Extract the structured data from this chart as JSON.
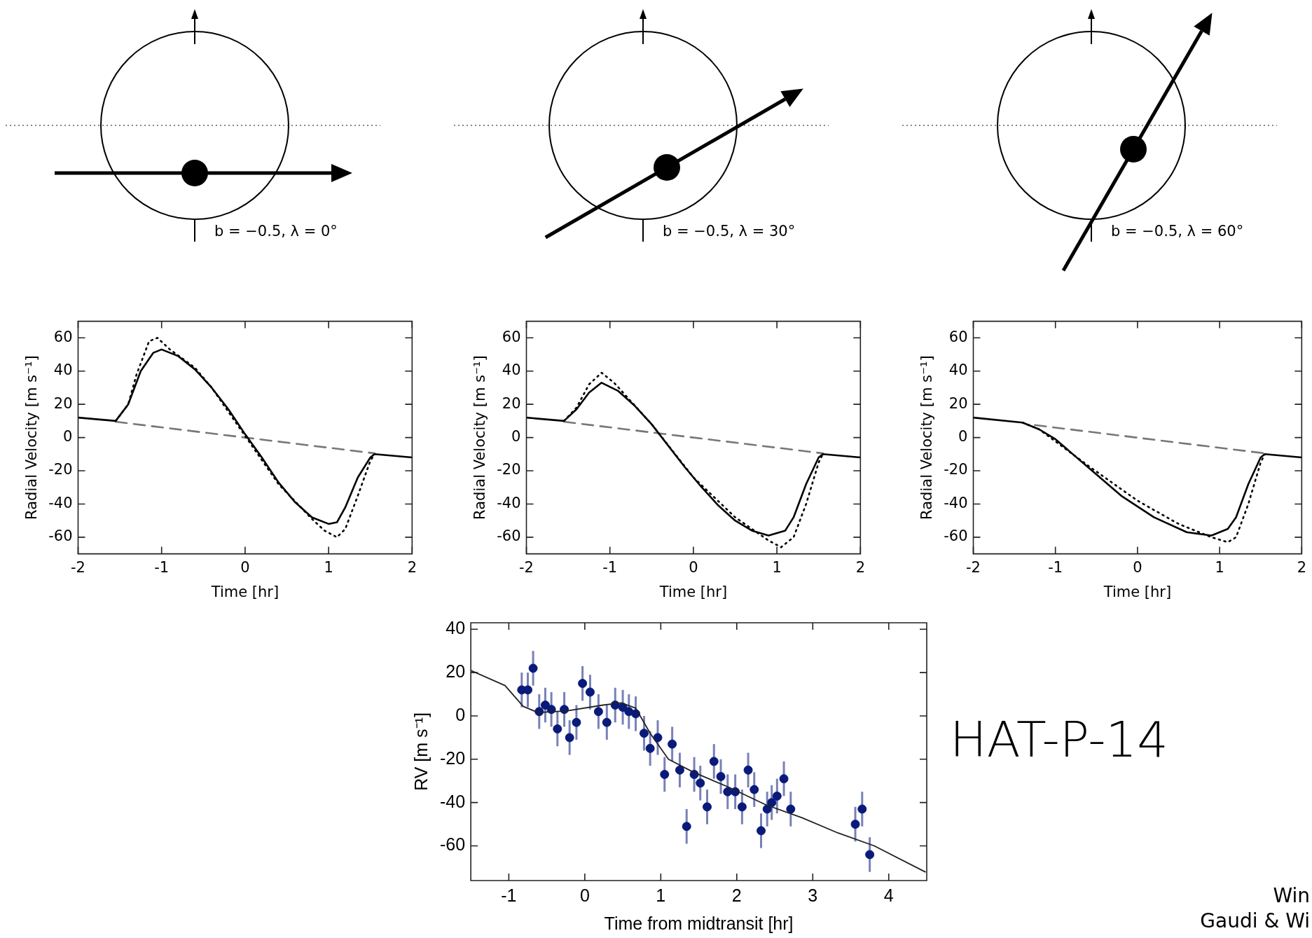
{
  "chart_data": [
    {
      "type": "line",
      "xlabel": "Time [hr]",
      "ylabel": "Radial Velocity [m s⁻¹]",
      "xlim": [
        -2,
        2
      ],
      "ylim": [
        -70,
        70
      ],
      "xticks": [
        -2,
        -1,
        0,
        1,
        2
      ],
      "yticks": [
        -60,
        -40,
        -20,
        0,
        20,
        40,
        60
      ],
      "annotations": [
        "b = −0.5, λ = 0°"
      ],
      "series": [
        {
          "color": "#000000",
          "line_style": "solid",
          "x": [
            -2,
            -1.55,
            -1.4,
            -1.25,
            -1.1,
            -1,
            -0.8,
            -0.6,
            -0.4,
            -0.2,
            0,
            0.2,
            0.4,
            0.6,
            0.8,
            1,
            1.1,
            1.2,
            1.35,
            1.5,
            1.55,
            2
          ],
          "values": [
            12,
            10,
            20,
            40,
            51,
            53,
            49,
            41,
            30,
            17,
            2,
            -12,
            -27,
            -39,
            -48,
            -52,
            -51,
            -42,
            -24,
            -12,
            -10,
            -12
          ]
        },
        {
          "color": "#000000",
          "line_style": "dotted",
          "x": [
            -1.55,
            -1.4,
            -1.3,
            -1.15,
            -1.05,
            -0.9,
            -0.6,
            -0.4,
            0,
            0.4,
            0.8,
            0.95,
            1.1,
            1.2,
            1.35,
            1.5,
            1.55
          ],
          "values": [
            10,
            20,
            38,
            58,
            60,
            53,
            42,
            30,
            1,
            -28,
            -49,
            -56,
            -60,
            -55,
            -35,
            -14,
            -10
          ]
        },
        {
          "color": "#777777",
          "line_style": "dashed",
          "x": [
            -1.55,
            1.55
          ],
          "values": [
            9.5,
            -9.5
          ]
        }
      ]
    },
    {
      "type": "line",
      "xlabel": "Time [hr]",
      "ylabel": "Radial Velocity [m s⁻¹]",
      "xlim": [
        -2,
        2
      ],
      "ylim": [
        -70,
        70
      ],
      "xticks": [
        -2,
        -1,
        0,
        1,
        2
      ],
      "yticks": [
        -60,
        -40,
        -20,
        0,
        20,
        40,
        60
      ],
      "annotations": [
        "b = −0.5, λ = 30°"
      ],
      "series": [
        {
          "color": "#000000",
          "line_style": "solid",
          "x": [
            -2,
            -1.55,
            -1.4,
            -1.25,
            -1.1,
            -0.9,
            -0.7,
            -0.5,
            -0.3,
            -0.1,
            0.1,
            0.3,
            0.5,
            0.7,
            0.9,
            1.1,
            1.2,
            1.35,
            1.5,
            1.55,
            2
          ],
          "values": [
            12,
            10,
            17,
            27,
            33,
            28,
            19,
            8,
            -5,
            -18,
            -30,
            -41,
            -50,
            -56,
            -59,
            -56,
            -48,
            -28,
            -12,
            -10,
            -12
          ]
        },
        {
          "color": "#000000",
          "line_style": "dotted",
          "x": [
            -1.55,
            -1.4,
            -1.25,
            -1.1,
            -0.95,
            -0.5,
            0,
            0.5,
            0.9,
            1.05,
            1.2,
            1.35,
            1.5,
            1.55
          ],
          "values": [
            10,
            18,
            32,
            39,
            33,
            8,
            -24,
            -48,
            -62,
            -66,
            -60,
            -40,
            -15,
            -10
          ]
        },
        {
          "color": "#777777",
          "line_style": "dashed",
          "x": [
            -1.55,
            1.55
          ],
          "values": [
            9.5,
            -9.5
          ]
        }
      ]
    },
    {
      "type": "line",
      "xlabel": "Time [hr]",
      "ylabel": "Radial Velocity [m s⁻¹]",
      "xlim": [
        -2,
        2
      ],
      "ylim": [
        -70,
        70
      ],
      "xticks": [
        -2,
        -1,
        0,
        1,
        2
      ],
      "yticks": [
        -60,
        -40,
        -20,
        0,
        20,
        40,
        60
      ],
      "annotations": [
        "b = −0.5, λ = 60°"
      ],
      "series": [
        {
          "color": "#000000",
          "line_style": "solid",
          "x": [
            -2,
            -1.4,
            -1.2,
            -1,
            -0.6,
            -0.2,
            0.2,
            0.6,
            0.9,
            1.1,
            1.2,
            1.35,
            1.5,
            1.55,
            2
          ],
          "values": [
            12,
            9,
            5,
            -1,
            -18,
            -35,
            -48,
            -57,
            -59,
            -55,
            -48,
            -28,
            -12,
            -10,
            -12
          ]
        },
        {
          "color": "#000000",
          "line_style": "dotted",
          "x": [
            -1.4,
            -1.2,
            -0.6,
            0,
            0.5,
            0.9,
            1.1,
            1.2,
            1.35,
            1.5,
            1.55
          ],
          "values": [
            9,
            5,
            -17,
            -38,
            -52,
            -60,
            -63,
            -60,
            -40,
            -15,
            -10
          ]
        },
        {
          "color": "#777777",
          "line_style": "dashed",
          "x": [
            -1.25,
            1.55
          ],
          "values": [
            7.5,
            -9.5
          ]
        }
      ]
    },
    {
      "type": "scatter",
      "xlabel": "Time from midtransit [hr]",
      "ylabel": "RV [m s⁻¹]",
      "xlim": [
        -1.5,
        4.5
      ],
      "ylim": [
        -76,
        43
      ],
      "xticks": [
        -1,
        0,
        1,
        2,
        3,
        4
      ],
      "yticks": [
        -60,
        -40,
        -20,
        0,
        20,
        40
      ],
      "annotations": [
        "HAT-P-14",
        "Win",
        "Gaudi & Wi"
      ],
      "series": [
        {
          "type": "line",
          "color": "#222222",
          "line_style": "solid",
          "x": [
            -1.5,
            -1.05,
            -0.81,
            -0.62,
            -0.24,
            0.24,
            0.48,
            0.67,
            0.86,
            1.1,
            1.43,
            1.9,
            2.38,
            2.86,
            3.33,
            3.81,
            4.48
          ],
          "values": [
            21,
            14,
            4.4,
            1.6,
            2.3,
            5,
            6,
            3.6,
            -8,
            -20,
            -26,
            -33,
            -41,
            -47,
            -54,
            -60,
            -72
          ]
        },
        {
          "color": "#0a1a7a",
          "marker": "circle",
          "x": [
            -0.83,
            -0.75,
            -0.68,
            -0.6,
            -0.52,
            -0.44,
            -0.36,
            -0.27,
            -0.2,
            -0.11,
            -0.03,
            0.07,
            0.18,
            0.29,
            0.4,
            0.5,
            0.58,
            0.67,
            0.78,
            0.86,
            0.96,
            1.05,
            1.15,
            1.25,
            1.34,
            1.44,
            1.52,
            1.61,
            1.7,
            1.79,
            1.88,
            1.98,
            2.07,
            2.15,
            2.23,
            2.32,
            2.4,
            2.46,
            2.53,
            2.62,
            2.71,
            3.56,
            3.65,
            3.75
          ],
          "values": [
            12,
            12,
            22,
            2,
            5,
            3,
            -6,
            3,
            -10,
            -3,
            15,
            11,
            2,
            -3,
            5,
            4,
            2,
            1,
            -8,
            -15,
            -10,
            -27,
            -13,
            -25,
            -51,
            -27,
            -31,
            -42,
            -21,
            -28,
            -35,
            -35,
            -42,
            -25,
            -34,
            -53,
            -43,
            -40,
            -37,
            -29,
            -43,
            -50,
            -43,
            -64
          ],
          "errors": [
            8,
            8,
            8,
            8,
            8,
            8,
            8,
            8,
            8,
            8,
            8,
            8,
            8,
            8,
            8,
            8,
            8,
            8,
            8,
            8,
            8,
            8,
            8,
            8,
            8,
            8,
            8,
            8,
            8,
            8,
            8,
            8,
            8,
            8,
            8,
            8,
            8,
            8,
            8,
            8,
            8,
            8,
            8,
            8
          ]
        }
      ]
    }
  ]
}
